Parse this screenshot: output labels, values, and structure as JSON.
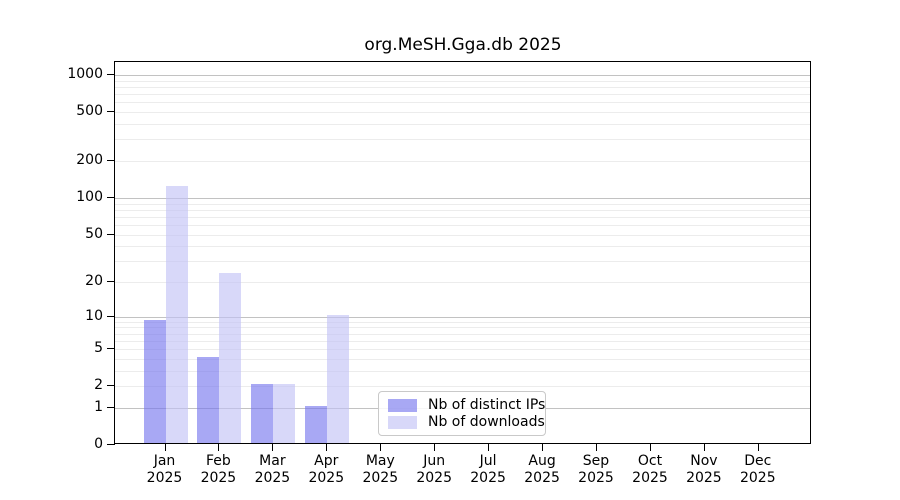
{
  "chart_data": {
    "type": "bar",
    "title": "org.MeSH.Gga.db 2025",
    "categories": [
      "Jan 2025",
      "Feb 2025",
      "Mar 2025",
      "Apr 2025",
      "May 2025",
      "Jun 2025",
      "Jul 2025",
      "Aug 2025",
      "Sep 2025",
      "Oct 2025",
      "Nov 2025",
      "Dec 2025"
    ],
    "series": [
      {
        "name": "Nb of distinct IPs",
        "color": "#7373ed",
        "fill_opacity": 0.62,
        "values": [
          9,
          4,
          2,
          1,
          0,
          0,
          0,
          0,
          0,
          0,
          0,
          0
        ]
      },
      {
        "name": "Nb of downloads",
        "color": "#c0c0f5",
        "fill_opacity": 0.62,
        "values": [
          120,
          23,
          2,
          10,
          0,
          0,
          0,
          0,
          0,
          0,
          0,
          0
        ]
      }
    ],
    "xlabel": "",
    "ylabel": "",
    "y_scale": "log10(1+x)",
    "y_ticks": [
      0,
      1,
      2,
      5,
      10,
      20,
      50,
      100,
      200,
      500,
      1000
    ],
    "ylim": [
      0,
      1280
    ],
    "grid": {
      "enabled": true,
      "major_at": [
        1,
        10,
        100,
        1000
      ],
      "major_color": "#c2c2c2",
      "minor_color": "#ececec"
    },
    "legend_position": "bottom-center",
    "axis_color": "#000000",
    "background_color": "#ffffff"
  }
}
